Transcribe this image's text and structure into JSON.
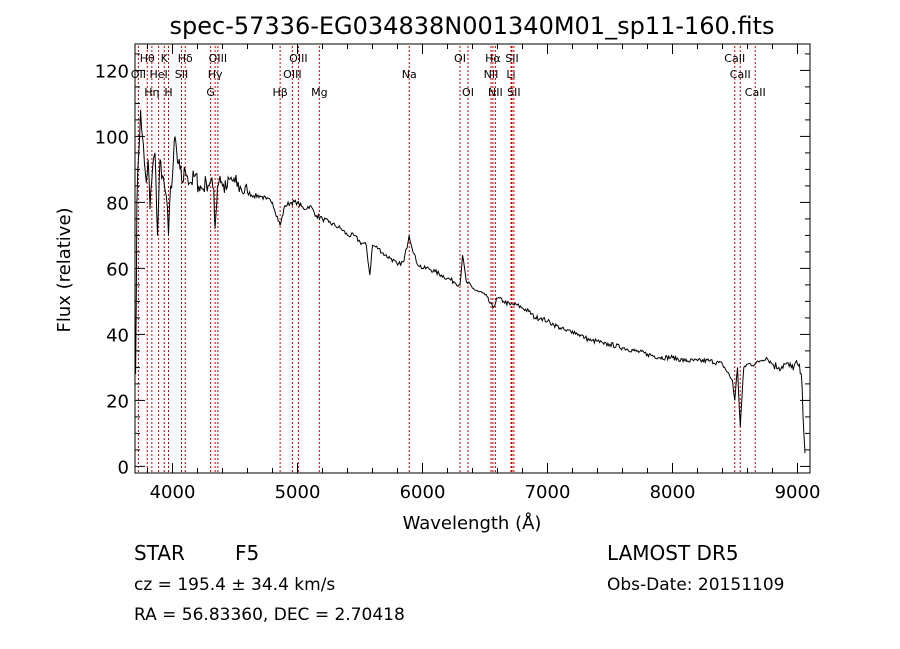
{
  "chart_data": {
    "type": "line",
    "title": "spec-57336-EG034838N001340M01_sp11-160.fits",
    "xlabel": "Wavelength (Å)",
    "ylabel": "Flux (relative)",
    "xlim": [
      3700,
      9100
    ],
    "ylim": [
      -2,
      128
    ],
    "x_ticks": [
      4000,
      5000,
      6000,
      7000,
      8000,
      9000
    ],
    "y_ticks": [
      0,
      20,
      40,
      60,
      80,
      100,
      120
    ],
    "grid": false,
    "line_color": "#000000",
    "marker_color": "#cc0000",
    "series": [
      {
        "x": [
          3705,
          3715,
          3730,
          3745,
          3760,
          3775,
          3790,
          3805,
          3820,
          3840,
          3860,
          3880,
          3900,
          3920,
          3935,
          3950,
          3968,
          3985,
          4000,
          4020,
          4040,
          4060,
          4080,
          4101,
          4120,
          4150,
          4180,
          4210,
          4240,
          4270,
          4300,
          4330,
          4340,
          4360,
          4380,
          4400,
          4430,
          4460,
          4500,
          4550,
          4600,
          4650,
          4700,
          4750,
          4800,
          4861,
          4900,
          4950,
          5000,
          5050,
          5100,
          5150,
          5200,
          5250,
          5300,
          5350,
          5400,
          5450,
          5500,
          5550,
          5578,
          5600,
          5650,
          5700,
          5750,
          5800,
          5850,
          5893,
          5950,
          6000,
          6050,
          6100,
          6150,
          6200,
          6250,
          6300,
          6320,
          6350,
          6400,
          6450,
          6500,
          6563,
          6600,
          6650,
          6700,
          6750,
          6800,
          6850,
          6900,
          6950,
          7000,
          7050,
          7100,
          7150,
          7200,
          7250,
          7300,
          7350,
          7400,
          7450,
          7500,
          7600,
          7700,
          7800,
          7900,
          8000,
          8100,
          8200,
          8300,
          8400,
          8480,
          8498,
          8520,
          8542,
          8570,
          8600,
          8662,
          8700,
          8750,
          8800,
          8850,
          8900,
          8950,
          9000,
          9030,
          9060
        ],
        "y": [
          28,
          80,
          95,
          108,
          100,
          92,
          86,
          93,
          78,
          90,
          95,
          70,
          93,
          88,
          85,
          82,
          70,
          85,
          88,
          100,
          92,
          90,
          86,
          90,
          88,
          86,
          88,
          85,
          84,
          86,
          86,
          84,
          72,
          85,
          88,
          85,
          84,
          87,
          86,
          84,
          83,
          82,
          82,
          81,
          80,
          73,
          79,
          80,
          80,
          78,
          79,
          76,
          75,
          74,
          73,
          72,
          70,
          70,
          68,
          67,
          58,
          67,
          66,
          64,
          63,
          61,
          62,
          70,
          62,
          60,
          60,
          59,
          58,
          57,
          56,
          55,
          64,
          56,
          54,
          53,
          52,
          48,
          51,
          50,
          49,
          49,
          48,
          47,
          45,
          45,
          44,
          43,
          42,
          41,
          41,
          40,
          39,
          38,
          38,
          37,
          37,
          36,
          35,
          34,
          33,
          33,
          32,
          32,
          32,
          31,
          26,
          20,
          30,
          12,
          30,
          31,
          31,
          32,
          33,
          31,
          30,
          31,
          30,
          31,
          28,
          4
        ]
      }
    ],
    "lines": [
      {
        "label": "Hθ",
        "x": 3798,
        "row": 1
      },
      {
        "label": "OII",
        "x": 3727,
        "row": 2
      },
      {
        "label": "Hη",
        "x": 3835,
        "row": 3
      },
      {
        "label": "HeI",
        "x": 3889,
        "row": 2
      },
      {
        "label": "K",
        "x": 3934,
        "row": 1
      },
      {
        "label": "H",
        "x": 3968,
        "row": 3
      },
      {
        "label": "SII",
        "x": 4072,
        "row": 2
      },
      {
        "label": "Hδ",
        "x": 4102,
        "row": 1
      },
      {
        "label": "OIII",
        "x": 4363,
        "row": 1
      },
      {
        "label": "Hγ",
        "x": 4341,
        "row": 2
      },
      {
        "label": "G",
        "x": 4305,
        "row": 3
      },
      {
        "label": "Hβ",
        "x": 4861,
        "row": 3
      },
      {
        "label": "OIII",
        "x": 5007,
        "row": 1
      },
      {
        "label": "OIII",
        "x": 4959,
        "row": 2
      },
      {
        "label": "Mg",
        "x": 5175,
        "row": 3
      },
      {
        "label": "Na",
        "x": 5894,
        "row": 2
      },
      {
        "label": "OI",
        "x": 6300,
        "row": 1
      },
      {
        "label": "OI",
        "x": 6364,
        "row": 3
      },
      {
        "label": "Hα",
        "x": 6563,
        "row": 1
      },
      {
        "label": "NII",
        "x": 6548,
        "row": 2
      },
      {
        "label": "NII",
        "x": 6583,
        "row": 3
      },
      {
        "label": "SII",
        "x": 6716,
        "row": 1
      },
      {
        "label": "Li",
        "x": 6708,
        "row": 2
      },
      {
        "label": "SII",
        "x": 6731,
        "row": 3
      },
      {
        "label": "CaII",
        "x": 8498,
        "row": 1
      },
      {
        "label": "CaII",
        "x": 8542,
        "row": 2
      },
      {
        "label": "CaII",
        "x": 8662,
        "row": 3
      }
    ]
  },
  "info": {
    "object_class": "STAR",
    "subclass": "F5",
    "survey": "LAMOST  DR5",
    "redshift_text": "cz = 195.4 ± 34.4 km/s",
    "obs_date": "Obs-Date: 20151109",
    "coords": "RA =  56.83360, DEC =   2.70418"
  }
}
